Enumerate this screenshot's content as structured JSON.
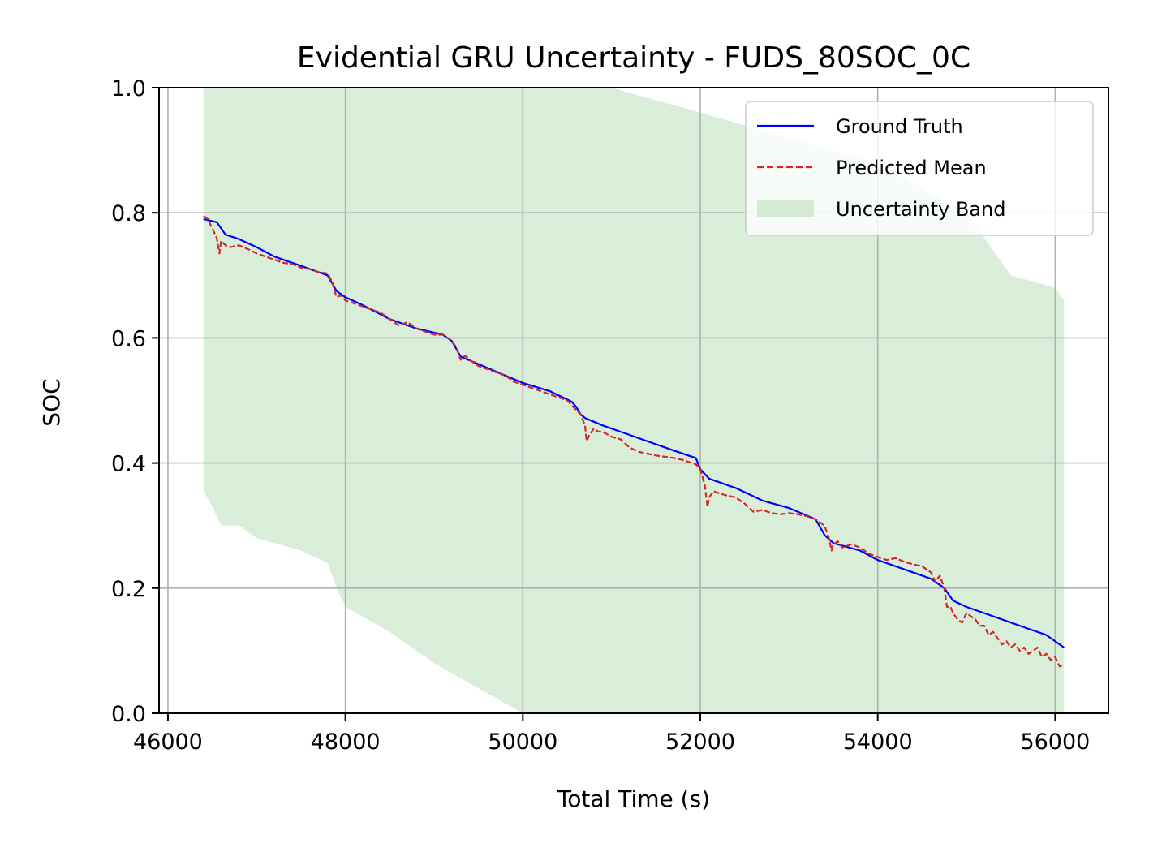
{
  "chart_data": {
    "type": "line",
    "title": "Evidential GRU Uncertainty - FUDS_80SOC_0C",
    "xlabel": "Total Time (s)",
    "ylabel": "SOC",
    "xlim": [
      45900,
      56600
    ],
    "ylim": [
      0.0,
      1.0
    ],
    "xticks": [
      46000,
      48000,
      50000,
      52000,
      54000,
      56000
    ],
    "xtick_labels": [
      "46000",
      "48000",
      "50000",
      "52000",
      "54000",
      "56000"
    ],
    "yticks": [
      0.0,
      0.2,
      0.4,
      0.6,
      0.8,
      1.0
    ],
    "ytick_labels": [
      "0.0",
      "0.2",
      "0.4",
      "0.6",
      "0.8",
      "1.0"
    ],
    "grid": true,
    "legend_position": "top-right",
    "series": [
      {
        "name": "Ground Truth",
        "style": "solid",
        "color": "#0000ff",
        "x": [
          46400,
          46550,
          46650,
          46800,
          47000,
          47200,
          47500,
          47800,
          47900,
          48000,
          48200,
          48500,
          48800,
          49100,
          49200,
          49300,
          49500,
          49800,
          50000,
          50300,
          50550,
          50600,
          50650,
          50700,
          50900,
          51100,
          51400,
          51700,
          51950,
          52000,
          52100,
          52400,
          52700,
          53000,
          53300,
          53400,
          53500,
          53800,
          54000,
          54300,
          54600,
          54750,
          54850,
          55000,
          55300,
          55600,
          55900,
          56100
        ],
        "y": [
          0.79,
          0.785,
          0.765,
          0.758,
          0.745,
          0.73,
          0.715,
          0.7,
          0.675,
          0.665,
          0.652,
          0.63,
          0.615,
          0.605,
          0.595,
          0.57,
          0.558,
          0.54,
          0.528,
          0.515,
          0.498,
          0.49,
          0.478,
          0.472,
          0.46,
          0.45,
          0.435,
          0.42,
          0.408,
          0.39,
          0.375,
          0.36,
          0.34,
          0.328,
          0.31,
          0.285,
          0.272,
          0.26,
          0.245,
          0.23,
          0.215,
          0.2,
          0.18,
          0.17,
          0.155,
          0.14,
          0.125,
          0.105
        ]
      },
      {
        "name": "Predicted Mean",
        "style": "dashed",
        "color": "#d62728",
        "x": [
          46400,
          46450,
          46500,
          46550,
          46580,
          46600,
          46650,
          46700,
          46800,
          46900,
          47000,
          47100,
          47200,
          47300,
          47400,
          47500,
          47600,
          47700,
          47800,
          47850,
          47900,
          47950,
          48000,
          48100,
          48200,
          48300,
          48400,
          48500,
          48600,
          48700,
          48800,
          48900,
          49000,
          49100,
          49200,
          49250,
          49300,
          49350,
          49400,
          49500,
          49600,
          49700,
          49800,
          49900,
          50000,
          50100,
          50200,
          50300,
          50400,
          50500,
          50600,
          50650,
          50700,
          50720,
          50750,
          50800,
          50850,
          50900,
          51000,
          51100,
          51200,
          51300,
          51400,
          51500,
          51600,
          51700,
          51800,
          51900,
          51950,
          52000,
          52050,
          52080,
          52100,
          52150,
          52200,
          52300,
          52400,
          52500,
          52600,
          52700,
          52800,
          52900,
          53000,
          53100,
          53200,
          53300,
          53400,
          53450,
          53480,
          53500,
          53550,
          53600,
          53700,
          53800,
          53900,
          54000,
          54100,
          54200,
          54300,
          54400,
          54500,
          54600,
          54650,
          54700,
          54750,
          54780,
          54820,
          54850,
          54900,
          54950,
          55000,
          55050,
          55100,
          55150,
          55200,
          55250,
          55300,
          55350,
          55400,
          55450,
          55500,
          55550,
          55600,
          55650,
          55700,
          55750,
          55800,
          55850,
          55900,
          55950,
          56000,
          56050,
          56100
        ],
        "y": [
          0.795,
          0.79,
          0.775,
          0.76,
          0.735,
          0.755,
          0.748,
          0.745,
          0.748,
          0.742,
          0.735,
          0.73,
          0.725,
          0.72,
          0.718,
          0.712,
          0.71,
          0.705,
          0.703,
          0.69,
          0.665,
          0.668,
          0.66,
          0.655,
          0.65,
          0.645,
          0.64,
          0.63,
          0.62,
          0.625,
          0.615,
          0.61,
          0.605,
          0.605,
          0.595,
          0.585,
          0.565,
          0.572,
          0.565,
          0.555,
          0.55,
          0.545,
          0.54,
          0.53,
          0.525,
          0.52,
          0.515,
          0.51,
          0.505,
          0.5,
          0.485,
          0.478,
          0.46,
          0.435,
          0.445,
          0.455,
          0.45,
          0.45,
          0.442,
          0.438,
          0.425,
          0.418,
          0.415,
          0.412,
          0.41,
          0.408,
          0.405,
          0.4,
          0.398,
          0.39,
          0.365,
          0.33,
          0.345,
          0.355,
          0.352,
          0.348,
          0.345,
          0.335,
          0.322,
          0.325,
          0.32,
          0.318,
          0.32,
          0.318,
          0.315,
          0.31,
          0.3,
          0.28,
          0.26,
          0.27,
          0.275,
          0.265,
          0.27,
          0.265,
          0.255,
          0.25,
          0.245,
          0.248,
          0.242,
          0.238,
          0.235,
          0.225,
          0.21,
          0.22,
          0.2,
          0.17,
          0.17,
          0.16,
          0.15,
          0.145,
          0.16,
          0.155,
          0.15,
          0.14,
          0.14,
          0.125,
          0.13,
          0.12,
          0.11,
          0.115,
          0.105,
          0.11,
          0.1,
          0.105,
          0.095,
          0.1,
          0.105,
          0.09,
          0.095,
          0.085,
          0.09,
          0.075,
          0.078
        ]
      },
      {
        "name": "Uncertainty Band",
        "style": "fill",
        "color": "#2ca02c",
        "opacity": 0.18,
        "x": [
          46400,
          46420,
          46500,
          46600,
          46800,
          47000,
          47500,
          47800,
          47900,
          48000,
          48500,
          49000,
          49500,
          50000,
          50200,
          50300,
          51000,
          52000,
          53000,
          54000,
          55000,
          55500,
          56000,
          56100
        ],
        "lower": [
          0.36,
          0.35,
          0.33,
          0.3,
          0.3,
          0.28,
          0.26,
          0.24,
          0.2,
          0.17,
          0.13,
          0.08,
          0.04,
          0.0,
          0.0,
          0.0,
          0.0,
          0.0,
          0.0,
          0.0,
          0.0,
          0.0,
          0.0,
          0.0
        ],
        "upper": [
          1.0,
          1.0,
          1.0,
          1.0,
          1.0,
          1.0,
          1.0,
          1.0,
          1.0,
          1.0,
          1.0,
          1.0,
          1.0,
          1.0,
          1.0,
          1.0,
          1.0,
          0.96,
          0.92,
          0.88,
          0.8,
          0.7,
          0.68,
          0.66
        ]
      }
    ]
  }
}
